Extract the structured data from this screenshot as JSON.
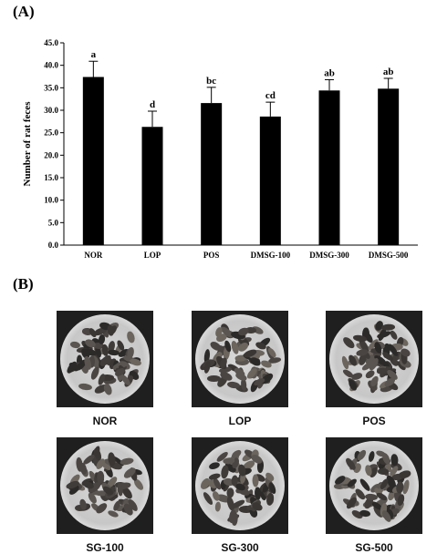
{
  "panel_a_label": "(A)",
  "panel_b_label": "(B)",
  "chart_data": {
    "type": "bar",
    "ylabel": "Number of rat feces",
    "xlabel": "",
    "ylim": [
      0,
      45
    ],
    "yticks": [
      "0.0",
      "5.0",
      "10.0",
      "15.0",
      "20.0",
      "25.0",
      "30.0",
      "35.0",
      "40.0",
      "45.0"
    ],
    "grid": false,
    "bar_color": "#000000",
    "categories": [
      "NOR",
      "LOP",
      "POS",
      "DMSG-100",
      "DMSG-300",
      "DMSG-500"
    ],
    "values": [
      37.4,
      26.3,
      31.6,
      28.6,
      34.4,
      34.8
    ],
    "errors": [
      3.5,
      3.5,
      3.5,
      3.2,
      2.4,
      2.3
    ],
    "annotations": [
      "a",
      "d",
      "bc",
      "cd",
      "ab",
      "ab"
    ]
  },
  "photos": [
    {
      "label": "NOR"
    },
    {
      "label": "LOP"
    },
    {
      "label": "POS"
    },
    {
      "label": "SG-100"
    },
    {
      "label": "SG-300"
    },
    {
      "label": "SG-500"
    }
  ]
}
